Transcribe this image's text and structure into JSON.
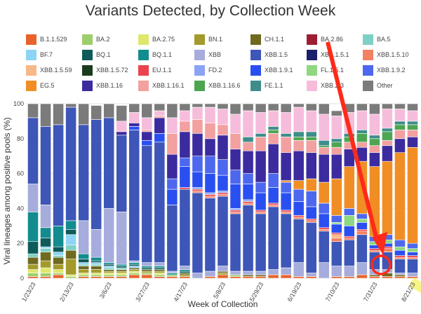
{
  "chart_data": {
    "type": "bar",
    "stacked": true,
    "title": "Variants Detected, by Collection Week",
    "xlabel": "Week of Collection",
    "ylabel": "Viral lineages among positive pools (%)",
    "ylim": [
      0,
      100
    ],
    "yticks": [
      0,
      20,
      40,
      60,
      80,
      100
    ],
    "grid": true,
    "legend_position": "top",
    "categories": [
      "1/23/23",
      "1/30/23",
      "2/6/23",
      "2/13/23",
      "2/20/23",
      "2/27/23",
      "3/6/23",
      "3/13/23",
      "3/20/23",
      "3/27/23",
      "4/3/23",
      "4/10/23",
      "4/17/23",
      "4/24/23",
      "5/1/23",
      "5/8/23",
      "5/15/23",
      "5/22/23",
      "5/29/23",
      "6/5/23",
      "6/12/23",
      "6/19/23",
      "6/26/23",
      "7/3/23",
      "7/10/23",
      "7/17/23",
      "7/24/23",
      "7/31/23",
      "8/7/23",
      "8/14/23",
      "8/21/23"
    ],
    "x_tick_labels": [
      "1/23/23",
      "2/13/23",
      "3/6/23",
      "3/27/23",
      "4/17/23",
      "5/8/23",
      "5/29/23",
      "6/19/23",
      "7/10/23",
      "7/31/23",
      "8/21/23"
    ],
    "highlighted_tick": "8/21/23",
    "series": [
      {
        "name": "B.1.1.529",
        "color": "#e8632b",
        "values": [
          1,
          1,
          2,
          0,
          1,
          1,
          1,
          1,
          2,
          2,
          1,
          1,
          1,
          0,
          1,
          2,
          1,
          1,
          1,
          2,
          2,
          1,
          1,
          0,
          1,
          1,
          2,
          1,
          1,
          1,
          1
        ]
      },
      {
        "name": "BA.2",
        "color": "#9ccf6b",
        "values": [
          2,
          2,
          1,
          1,
          1,
          1,
          1,
          1,
          1,
          1,
          1,
          1,
          0,
          0,
          0,
          0,
          1,
          0,
          0,
          0,
          0,
          0,
          0,
          0,
          0,
          0,
          0,
          0,
          0,
          0,
          0
        ]
      },
      {
        "name": "BA.2.75",
        "color": "#dfe86a",
        "values": [
          2,
          3,
          2,
          1,
          1,
          1,
          1,
          1,
          1,
          0,
          1,
          0,
          0,
          0,
          0,
          0,
          0,
          0,
          0,
          0,
          0,
          0,
          0,
          0,
          0,
          0,
          0,
          0,
          0,
          0,
          0
        ]
      },
      {
        "name": "BN.1",
        "color": "#a39a2b",
        "values": [
          3,
          4,
          3,
          9,
          2,
          2,
          1,
          1,
          1,
          1,
          1,
          0,
          1,
          0,
          0,
          1,
          0,
          0,
          0,
          0,
          0,
          0,
          0,
          0,
          0,
          0,
          0,
          0,
          0,
          0,
          0
        ]
      },
      {
        "name": "CH.1.1",
        "color": "#6f6a1f",
        "values": [
          4,
          5,
          4,
          5,
          2,
          2,
          1,
          1,
          1,
          1,
          1,
          0,
          1,
          0,
          0,
          1,
          0,
          1,
          1,
          0,
          0,
          0,
          0,
          0,
          0,
          0,
          0,
          1,
          2,
          1,
          0
        ]
      },
      {
        "name": "BA.2.86",
        "color": "#9d1d32",
        "values": [
          0,
          0,
          0,
          0,
          0,
          0,
          0,
          0,
          0,
          0,
          0,
          0,
          0,
          0,
          0,
          0,
          0,
          0,
          0,
          0,
          0,
          0,
          0,
          0,
          0,
          0,
          0,
          0,
          0,
          0,
          0
        ]
      },
      {
        "name": "BA.5",
        "color": "#7fd0c4",
        "values": [
          2,
          2,
          1,
          3,
          1,
          1,
          1,
          1,
          0,
          0,
          0,
          0,
          0,
          0,
          0,
          0,
          0,
          0,
          0,
          0,
          0,
          0,
          0,
          0,
          0,
          0,
          0,
          0,
          0,
          0,
          0
        ]
      },
      {
        "name": "BF.7",
        "color": "#8dd4f7",
        "values": [
          0,
          1,
          2,
          6,
          1,
          1,
          1,
          0,
          1,
          0,
          0,
          0,
          0,
          0,
          0,
          0,
          0,
          0,
          0,
          0,
          0,
          0,
          0,
          0,
          0,
          0,
          0,
          0,
          0,
          0,
          0
        ]
      },
      {
        "name": "BQ.1",
        "color": "#0f5a5a",
        "values": [
          7,
          5,
          3,
          3,
          2,
          1,
          1,
          1,
          1,
          1,
          1,
          0,
          1,
          0,
          0,
          0,
          0,
          0,
          0,
          0,
          0,
          0,
          0,
          0,
          0,
          0,
          0,
          0,
          0,
          0,
          0
        ]
      },
      {
        "name": "BQ.1.1",
        "color": "#138c8f",
        "values": [
          17,
          6,
          12,
          5,
          3,
          2,
          1,
          1,
          1,
          1,
          1,
          1,
          1,
          0,
          0,
          0,
          0,
          0,
          0,
          0,
          0,
          0,
          0,
          0,
          0,
          0,
          0,
          0,
          0,
          0,
          0
        ]
      },
      {
        "name": "XBB",
        "color": "#a6acdc",
        "values": [
          16,
          13,
          0,
          0,
          19,
          16,
          31,
          30,
          1,
          2,
          2,
          1,
          2,
          3,
          3,
          3,
          2,
          2,
          2,
          3,
          4,
          8,
          2,
          9,
          6,
          6,
          7,
          3,
          2,
          1,
          2
        ]
      },
      {
        "name": "XBB.1.5",
        "color": "#3e56b7",
        "values": [
          38,
          45,
          58,
          65,
          55,
          63,
          52,
          44,
          75,
          67,
          69,
          38,
          44,
          46,
          42,
          40,
          33,
          38,
          33,
          36,
          31,
          25,
          29,
          18,
          14,
          15,
          16,
          10,
          10,
          8,
          8
        ]
      },
      {
        "name": "XBB.1.5.1",
        "color": "#1a1f6b",
        "values": [
          0,
          0,
          0,
          0,
          0,
          0,
          0,
          0,
          0,
          0,
          0,
          0,
          0,
          0,
          0,
          0,
          0,
          0,
          0,
          0,
          0,
          0,
          0,
          0,
          0,
          0,
          0,
          0,
          0,
          0,
          0
        ]
      },
      {
        "name": "XBB.1.5.10",
        "color": "#f28162",
        "values": [
          0,
          0,
          0,
          0,
          0,
          0,
          0,
          0,
          0,
          0,
          0,
          0,
          0,
          1,
          1,
          1,
          1,
          1,
          1,
          1,
          1,
          1,
          1,
          1,
          2,
          1,
          2,
          1,
          2,
          1,
          1
        ]
      },
      {
        "name": "XBB.1.5.59",
        "color": "#f8b887",
        "values": [
          0,
          0,
          0,
          0,
          0,
          0,
          0,
          0,
          0,
          0,
          0,
          0,
          0,
          0,
          0,
          0,
          0,
          0,
          0,
          0,
          0,
          0,
          0,
          0,
          2,
          0,
          0,
          0,
          0,
          0,
          0
        ]
      },
      {
        "name": "XBB.1.5.72",
        "color": "#1c3b1d",
        "values": [
          0,
          0,
          0,
          0,
          0,
          0,
          0,
          0,
          0,
          0,
          0,
          0,
          0,
          0,
          0,
          0,
          0,
          0,
          0,
          0,
          0,
          0,
          0,
          0,
          0,
          0,
          0,
          0,
          0,
          0,
          0
        ]
      },
      {
        "name": "EU.1.1",
        "color": "#ea4350",
        "values": [
          0,
          0,
          0,
          0,
          0,
          0,
          0,
          0,
          0,
          0,
          0,
          0,
          1,
          1,
          1,
          1,
          1,
          1,
          1,
          1,
          1,
          1,
          1,
          1,
          1,
          1,
          1,
          1,
          1,
          1,
          1
        ]
      },
      {
        "name": "FD.2",
        "color": "#8ba3f4",
        "values": [
          0,
          0,
          0,
          0,
          0,
          0,
          0,
          0,
          0,
          0,
          0,
          0,
          0,
          1,
          1,
          1,
          1,
          1,
          0,
          0,
          0,
          0,
          0,
          0,
          0,
          0,
          0,
          0,
          0,
          0,
          0
        ]
      },
      {
        "name": "XBB.1.9.1",
        "color": "#2a4ff1",
        "values": [
          0,
          0,
          0,
          0,
          0,
          0,
          0,
          0,
          2,
          3,
          5,
          9,
          12,
          9,
          11,
          9,
          14,
          9,
          10,
          9,
          10,
          8,
          7,
          8,
          5,
          6,
          4,
          2,
          2,
          3,
          2
        ]
      },
      {
        "name": "FL.1.5.1",
        "color": "#8fd781",
        "values": [
          0,
          0,
          0,
          0,
          0,
          0,
          0,
          0,
          0,
          0,
          0,
          0,
          0,
          0,
          0,
          0,
          0,
          0,
          0,
          0,
          0,
          0,
          0,
          0,
          1,
          6,
          2,
          2,
          2,
          2,
          2
        ]
      },
      {
        "name": "XBB.1.9.2",
        "color": "#4d68ee",
        "values": [
          0,
          0,
          0,
          0,
          0,
          0,
          0,
          0,
          0,
          0,
          0,
          6,
          5,
          9,
          10,
          9,
          8,
          6,
          6,
          8,
          6,
          7,
          9,
          6,
          4,
          4,
          3,
          3,
          3,
          4,
          3
        ]
      },
      {
        "name": "EG.5",
        "color": "#f08e25",
        "values": [
          0,
          0,
          0,
          0,
          0,
          0,
          0,
          0,
          0,
          0,
          0,
          0,
          0,
          0,
          0,
          0,
          0,
          0,
          0,
          0,
          1,
          5,
          7,
          12,
          21,
          24,
          30,
          40,
          42,
          50,
          55
        ]
      },
      {
        "name": "XBB.1.16",
        "color": "#3c2b9e",
        "values": [
          0,
          0,
          0,
          0,
          0,
          0,
          0,
          2,
          2,
          5,
          9,
          14,
          15,
          13,
          10,
          14,
          12,
          13,
          18,
          17,
          16,
          17,
          15,
          16,
          14,
          10,
          8,
          8,
          9,
          8,
          6
        ]
      },
      {
        "name": "XBB.1.16.1",
        "color": "#f3a0a0",
        "values": [
          0,
          0,
          0,
          0,
          0,
          0,
          0,
          0,
          0,
          1,
          1,
          12,
          6,
          8,
          9,
          6,
          9,
          5,
          8,
          6,
          9,
          6,
          7,
          4,
          4,
          4,
          3,
          4,
          3,
          5,
          4
        ]
      },
      {
        "name": "XBB.1.16.6",
        "color": "#4da551",
        "values": [
          0,
          0,
          0,
          0,
          0,
          0,
          0,
          0,
          0,
          0,
          0,
          0,
          0,
          0,
          0,
          0,
          0,
          0,
          0,
          2,
          0,
          2,
          2,
          1,
          3,
          3,
          5,
          4,
          5,
          3,
          3
        ]
      },
      {
        "name": "FE.1.1",
        "color": "#3e8d8a",
        "values": [
          0,
          0,
          0,
          0,
          0,
          0,
          0,
          0,
          0,
          0,
          0,
          0,
          0,
          0,
          0,
          0,
          0,
          3,
          2,
          2,
          2,
          3,
          3,
          3,
          2,
          2,
          2,
          2,
          2,
          2,
          2
        ]
      },
      {
        "name": "XBB.2.3",
        "color": "#f6bcdb",
        "values": [
          0,
          0,
          0,
          0,
          0,
          0,
          0,
          6,
          6,
          7,
          3,
          9,
          6,
          7,
          9,
          9,
          11,
          15,
          12,
          9,
          12,
          14,
          12,
          15,
          13,
          12,
          11,
          12,
          11,
          7,
          6
        ]
      },
      {
        "name": "Other",
        "color": "#7b7b7b",
        "values": [
          8,
          13,
          12,
          2,
          12,
          8,
          8,
          9,
          5,
          8,
          4,
          9,
          4,
          2,
          2,
          3,
          6,
          4,
          5,
          4,
          5,
          2,
          4,
          6,
          3,
          5,
          4,
          7,
          6,
          4,
          4
        ]
      }
    ]
  }
}
